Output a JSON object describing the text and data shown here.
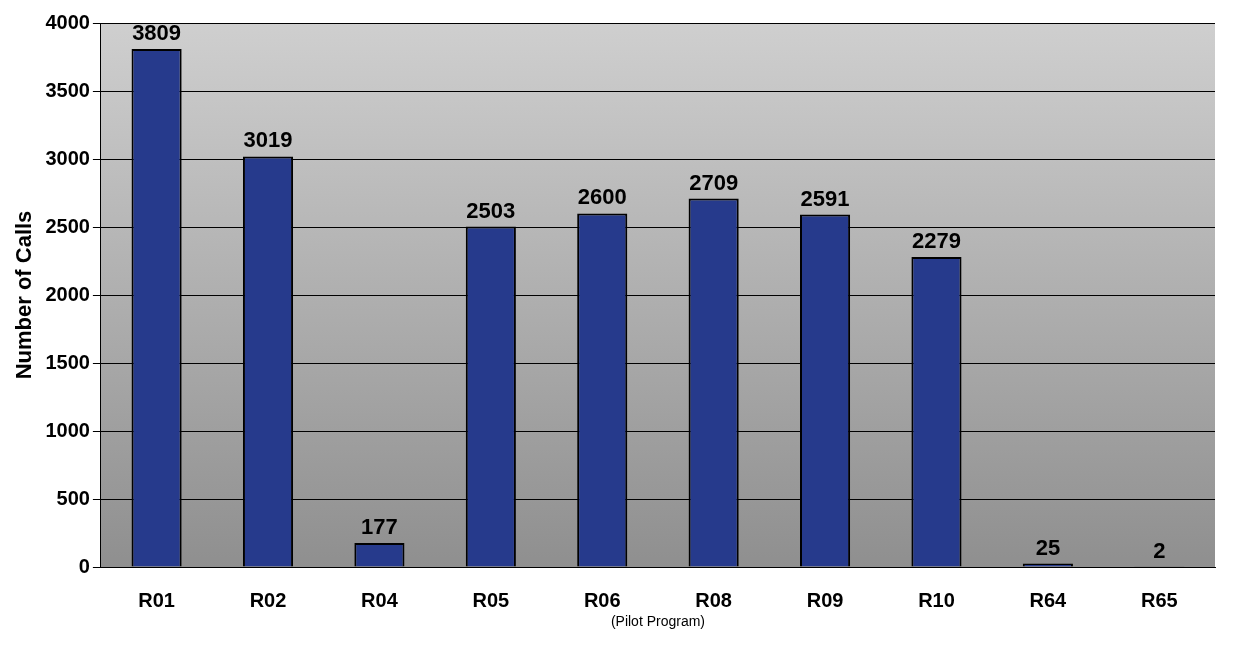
{
  "chart_data": {
    "type": "bar",
    "ylabel": "Number of Calls",
    "categories": [
      "R01",
      "R02",
      "R04",
      "R05",
      "R06",
      "R08",
      "R09",
      "R10",
      "R64",
      "R65"
    ],
    "values": [
      3809,
      3019,
      177,
      2503,
      2600,
      2709,
      2591,
      2279,
      25,
      2
    ],
    "color": "#263a8c",
    "ylim": [
      0,
      4000
    ],
    "yticks": [
      0,
      500,
      1000,
      1500,
      2000,
      2500,
      3000,
      3500,
      4000
    ],
    "grid": "y",
    "legend": false,
    "data_labels": true,
    "annotations": [
      "(Pilot Program)"
    ]
  }
}
